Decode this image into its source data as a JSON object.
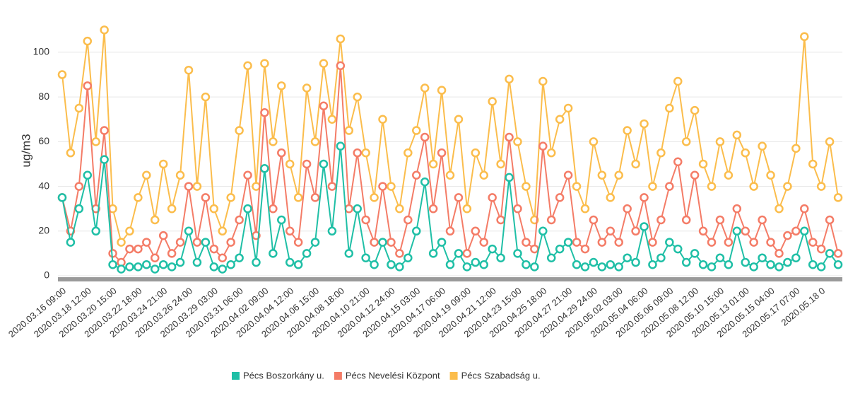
{
  "chart_data": {
    "type": "line",
    "ylabel": "ug/m3",
    "ylim": [
      0,
      112
    ],
    "yticks": [
      0,
      20,
      40,
      60,
      80,
      100
    ],
    "grid": true,
    "legend": "bottom",
    "categories": [
      "2020.03.16 09:00",
      null,
      null,
      "2020.03.18 12:00",
      null,
      null,
      "2020.03.20 15:00",
      null,
      null,
      "2020.03.22 18:00",
      null,
      null,
      "2020.03.24 21:00",
      null,
      null,
      "2020.03.26 24:00",
      null,
      null,
      "2020.03.29 03:00",
      null,
      null,
      "2020.03.31 06:00",
      null,
      null,
      "2020.04.02 09:00",
      null,
      null,
      "2020.04.04 12:00",
      null,
      null,
      "2020.04.06 15:00",
      null,
      null,
      "2020.04.08 18:00",
      null,
      null,
      "2020.04.10 21:00",
      null,
      null,
      "2020.04.12 24:00",
      null,
      null,
      "2020.04.15 03:00",
      null,
      null,
      "2020.04.17 06:00",
      null,
      null,
      "2020.04.19 09:00",
      null,
      null,
      "2020.04.21 12:00",
      null,
      null,
      "2020.04.23 15:00",
      null,
      null,
      "2020.04.25 18:00",
      null,
      null,
      "2020.04.27 21:00",
      null,
      null,
      "2020.04.29 24:00",
      null,
      null,
      "2020.05.02 03:00",
      null,
      null,
      "2020.05.04 06:00",
      null,
      null,
      "2020.05.06 09:00",
      null,
      null,
      "2020.05.08 12:00",
      null,
      null,
      "2020.05.10 15:00",
      null,
      null,
      "2020.05.13 01:00",
      null,
      null,
      "2020.05.15 04:00",
      null,
      null,
      "2020.05.17 07:00",
      null,
      null,
      "2020.05.18 0",
      null,
      null
    ],
    "series": [
      {
        "name": "Pécs Boszorkány u.",
        "color": "#1fbfa6",
        "values": [
          35,
          15,
          30,
          45,
          20,
          52,
          5,
          3,
          4,
          4,
          5,
          3,
          5,
          4,
          6,
          20,
          6,
          15,
          4,
          3,
          5,
          8,
          30,
          6,
          48,
          10,
          25,
          6,
          5,
          10,
          15,
          50,
          20,
          58,
          10,
          30,
          8,
          5,
          15,
          5,
          4,
          8,
          20,
          42,
          10,
          15,
          5,
          10,
          4,
          6,
          5,
          12,
          8,
          44,
          10,
          5,
          4,
          20,
          8,
          12,
          15,
          5,
          4,
          6,
          4,
          5,
          4,
          8,
          6,
          22,
          5,
          8,
          15,
          12,
          6,
          10,
          5,
          4,
          8,
          5,
          20,
          6,
          4,
          8,
          5,
          4,
          6,
          8,
          20,
          5,
          4,
          10,
          5
        ]
      },
      {
        "name": "Pécs Nevelési Központ",
        "color": "#f47c67",
        "values": [
          35,
          20,
          40,
          85,
          30,
          65,
          10,
          6,
          12,
          12,
          15,
          8,
          18,
          10,
          15,
          40,
          15,
          35,
          12,
          8,
          15,
          25,
          45,
          18,
          73,
          30,
          55,
          20,
          15,
          50,
          35,
          76,
          40,
          94,
          30,
          55,
          25,
          15,
          40,
          15,
          10,
          25,
          45,
          62,
          30,
          55,
          20,
          35,
          10,
          20,
          15,
          35,
          25,
          62,
          30,
          15,
          12,
          58,
          25,
          35,
          45,
          15,
          12,
          25,
          15,
          20,
          15,
          30,
          20,
          35,
          15,
          25,
          40,
          51,
          25,
          45,
          20,
          15,
          25,
          15,
          30,
          20,
          15,
          25,
          15,
          10,
          18,
          20,
          30,
          15,
          12,
          25,
          10
        ]
      },
      {
        "name": "Pécs Szabadság u.",
        "color": "#fbbd4c",
        "values": [
          90,
          55,
          75,
          105,
          60,
          110,
          30,
          15,
          20,
          35,
          45,
          25,
          50,
          30,
          45,
          92,
          40,
          80,
          30,
          20,
          35,
          65,
          94,
          40,
          95,
          60,
          85,
          50,
          35,
          84,
          60,
          95,
          70,
          106,
          65,
          80,
          55,
          35,
          70,
          40,
          30,
          55,
          65,
          84,
          50,
          83,
          45,
          70,
          30,
          55,
          45,
          78,
          50,
          88,
          60,
          40,
          25,
          87,
          55,
          70,
          75,
          40,
          30,
          60,
          45,
          35,
          45,
          65,
          50,
          68,
          40,
          55,
          75,
          87,
          60,
          74,
          50,
          40,
          60,
          45,
          63,
          55,
          40,
          58,
          45,
          30,
          40,
          57,
          107,
          50,
          40,
          60,
          35
        ]
      }
    ]
  }
}
